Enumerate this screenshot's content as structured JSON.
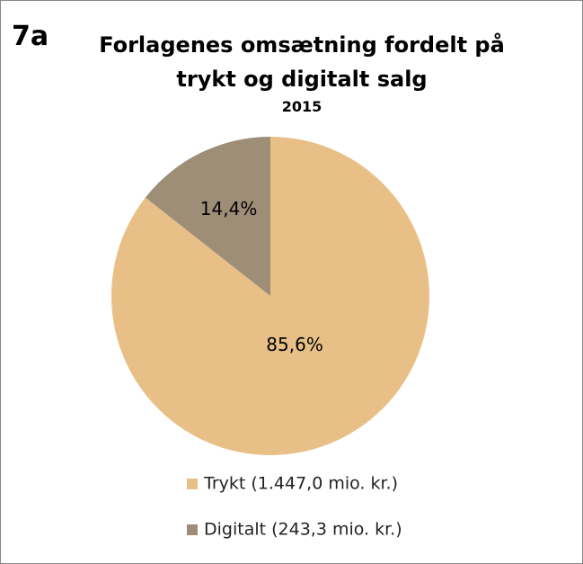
{
  "chart_data": {
    "type": "pie",
    "annotation": "7a",
    "title": "Forlagenes omsætning fordelt på trykt og digitalt salg",
    "subtitle": "2015",
    "categories": [
      "Trykt (1.447,0 mio. kr.)",
      "Digitalt (243,3 mio. kr.)"
    ],
    "values": [
      85.6,
      14.4
    ],
    "value_labels": [
      "85,6%",
      "14,4%"
    ],
    "colors": [
      "#e8c087",
      "#9e8e78"
    ],
    "legend": "bottom"
  }
}
